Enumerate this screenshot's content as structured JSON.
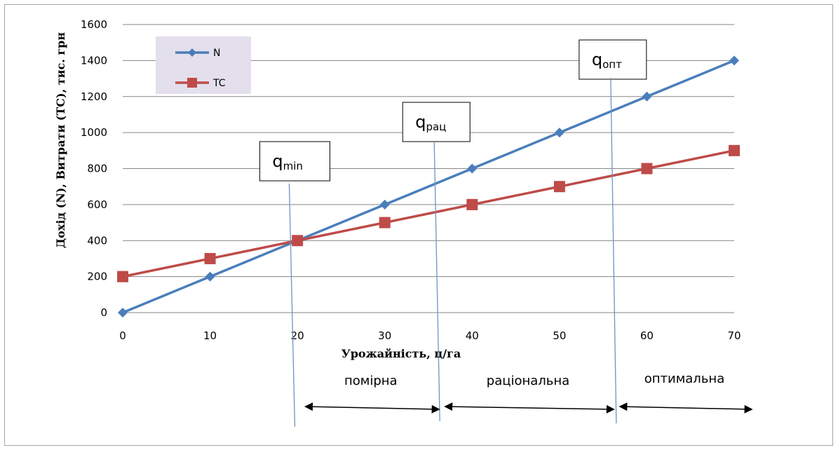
{
  "chart_data": {
    "type": "line",
    "xlabel": "Урожайність, ц/га",
    "ylabel": "Дохід (N), Витрати (TC), тис. грн",
    "x": [
      0,
      10,
      20,
      30,
      40,
      50,
      60,
      70
    ],
    "xlim": [
      0,
      70
    ],
    "ylim": [
      0,
      1600
    ],
    "yticks": [
      0,
      200,
      400,
      600,
      800,
      1000,
      1200,
      1400,
      1600
    ],
    "grid": true,
    "legend_position": "top-left",
    "series": [
      {
        "name": "N",
        "values": [
          0,
          200,
          400,
          600,
          800,
          1000,
          1200,
          1400
        ],
        "color": "#4a7ebb",
        "marker": "diamond"
      },
      {
        "name": "TC",
        "values": [
          200,
          300,
          400,
          500,
          600,
          700,
          800,
          900
        ],
        "color": "#be4b48",
        "marker": "square"
      }
    ],
    "annotations": [
      {
        "main": "q",
        "sub": "min",
        "x": 19.3
      },
      {
        "main": "q",
        "sub": "рац",
        "x": 35.9
      },
      {
        "main": "q",
        "sub": "опт",
        "x": 56.1
      }
    ],
    "regions": [
      {
        "label": "помірна",
        "from": 20.4,
        "to": 36.4
      },
      {
        "label": "раціональна",
        "from": 36.4,
        "to": 56.4
      },
      {
        "label": "оптимальна",
        "from": 56.4,
        "to": 72.2
      }
    ]
  }
}
